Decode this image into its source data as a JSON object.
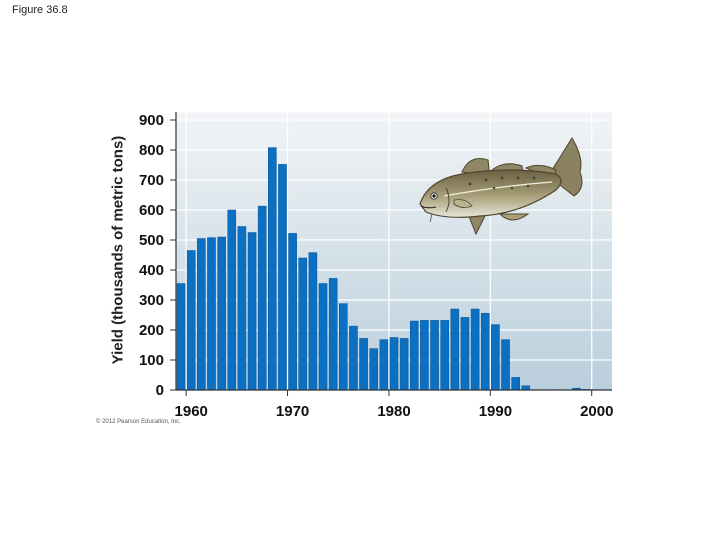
{
  "figure_label": "Figure 36.8",
  "copyright": "© 2012 Pearson Education, Inc.",
  "colors": {
    "bar": "#0b6fc2",
    "bar_edge": "#07579b",
    "plot_bg_top": "#f2f4f6",
    "plot_bg_bottom": "#b9cfdc",
    "grid": "#ffffff"
  },
  "icons": [
    "cod-fish-illustration"
  ],
  "chart_data": {
    "type": "bar",
    "title": "",
    "xlabel": "",
    "ylabel": "Yield (thousands of metric tons)",
    "ylim": [
      0,
      900
    ],
    "xlim": [
      1958.5,
      2001.5
    ],
    "grid": true,
    "y_ticks": [
      "0",
      "100",
      "200",
      "300",
      "400",
      "500",
      "600",
      "700",
      "800",
      "900"
    ],
    "x_ticks": [
      "1960",
      "1970",
      "1980",
      "1990",
      "2000"
    ],
    "years": [
      1959,
      1960,
      1961,
      1962,
      1963,
      1964,
      1965,
      1966,
      1967,
      1968,
      1969,
      1970,
      1971,
      1972,
      1973,
      1974,
      1975,
      1976,
      1977,
      1978,
      1979,
      1980,
      1981,
      1982,
      1983,
      1984,
      1985,
      1986,
      1987,
      1988,
      1989,
      1990,
      1991,
      1992,
      1993,
      1994,
      1995,
      1996,
      1997,
      1998,
      1999,
      2000
    ],
    "values": [
      355,
      465,
      505,
      508,
      510,
      600,
      545,
      525,
      613,
      808,
      752,
      522,
      440,
      458,
      355,
      372,
      288,
      213,
      172,
      138,
      168,
      175,
      172,
      230,
      232,
      232,
      232,
      270,
      242,
      270,
      256,
      218,
      168,
      42,
      14,
      1,
      1,
      1,
      1,
      6,
      2,
      1
    ]
  }
}
